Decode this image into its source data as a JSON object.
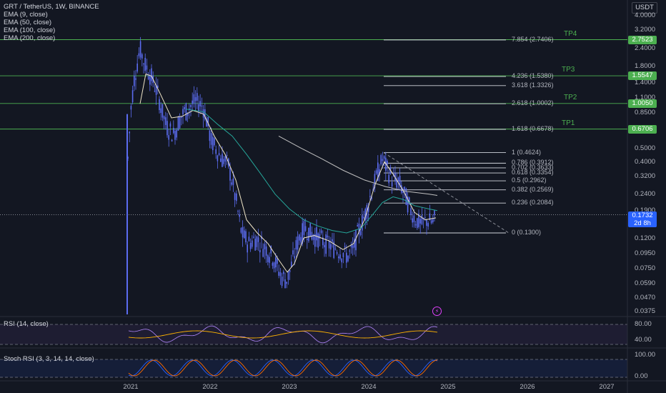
{
  "header": {
    "symbol_line": "GRT / TetherUS, 1W, BINANCE",
    "indicators": [
      "EMA (9, close)",
      "EMA (50, close)",
      "EMA (100, close)",
      "EMA (200, close)"
    ],
    "currency": "USDT"
  },
  "price_axis": {
    "ticks": [
      "4.0000",
      "3.2000",
      "2.4000",
      "1.8000",
      "1.4000",
      "1.1000",
      "0.8500",
      "0.6500",
      "0.5000",
      "0.4000",
      "0.3200",
      "0.2400",
      "0.1900",
      "0.1500",
      "0.1200",
      "0.0950",
      "0.0750",
      "0.0590",
      "0.0470",
      "0.0375"
    ],
    "tags": [
      {
        "label": "2.7523",
        "color": "#4caf50"
      },
      {
        "label": "1.5547",
        "color": "#4caf50"
      },
      {
        "label": "1.0050",
        "color": "#4caf50"
      },
      {
        "label": "0.6706",
        "color": "#4caf50"
      }
    ],
    "current_price": "0.1732",
    "countdown": "2d 8h"
  },
  "time_axis": [
    "2021",
    "2022",
    "2023",
    "2024",
    "2025",
    "2026",
    "2027"
  ],
  "targets": [
    "TP4",
    "TP3",
    "TP2",
    "TP1"
  ],
  "fib_levels": [
    {
      "label": "7.854 (2.7406)",
      "value": 2.7406
    },
    {
      "label": "4.236 (1.5380)",
      "value": 1.538
    },
    {
      "label": "3.618 (1.3326)",
      "value": 1.3326
    },
    {
      "label": "2.618 (1.0002)",
      "value": 1.0002
    },
    {
      "label": "1.618 (0.6678)",
      "value": 0.6678
    },
    {
      "label": "1 (0.4624)",
      "value": 0.4624
    },
    {
      "label": "0.786 (0.3912)",
      "value": 0.3912
    },
    {
      "label": "0.702 (0.3633)",
      "value": 0.3633
    },
    {
      "label": "0.618 (0.3354)",
      "value": 0.3354
    },
    {
      "label": "0.5 (0.2962)",
      "value": 0.2962
    },
    {
      "label": "0.382 (0.2569)",
      "value": 0.2569
    },
    {
      "label": "0.236 (0.2084)",
      "value": 0.2084
    },
    {
      "label": "0 (0.1300)",
      "value": 0.13
    }
  ],
  "rsi": {
    "label": "RSI (14, close)",
    "ticks": [
      "80.00",
      "40.00"
    ]
  },
  "stoch_rsi": {
    "label": "Stoch RSI (3, 3, 14, 14, close)",
    "ticks": [
      "100.00",
      "0.00"
    ]
  },
  "colors": {
    "candles": "#5b6cf0",
    "ema9": "#f0e6c8",
    "ema50": "#26a69a",
    "ema200": "#c0c0c0",
    "target": "#4caf50"
  }
}
